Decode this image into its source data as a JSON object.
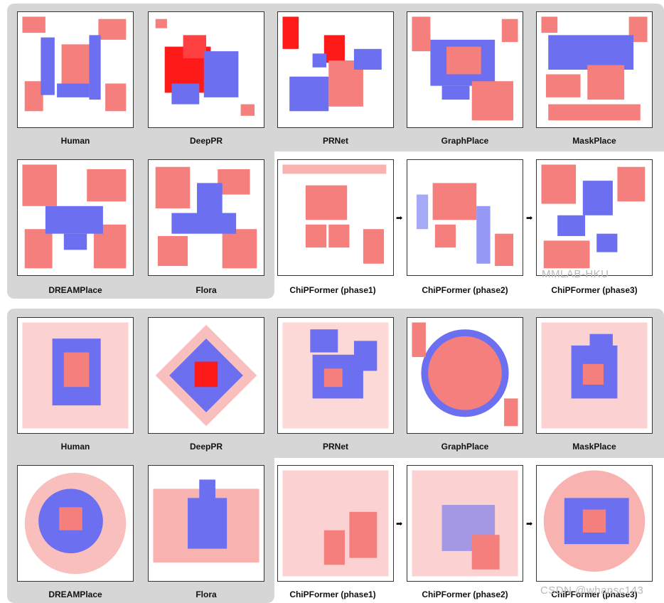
{
  "figure": {
    "top_set": {
      "labels": [
        "Human",
        "DeepPR",
        "PRNet",
        "GraphPlace",
        "MaskPlace",
        "DREAMPlace",
        "Flora",
        "ChiPFormer (phase1)",
        "ChiPFormer (phase2)",
        "ChiPFormer (phase3)"
      ]
    },
    "bottom_set": {
      "labels": [
        "Human",
        "DeepPR",
        "PRNet",
        "GraphPlace",
        "MaskPlace",
        "DREAMPlace",
        "Flora",
        "ChiPFormer (phase1)",
        "ChiPFormer (phase2)",
        "ChiPFormer (phase3)"
      ]
    },
    "arrow_glyph": "➡",
    "watermark_top": "MMLAB-HKU",
    "watermark_bottom": "CSDN @whansc143",
    "colors": {
      "macro": "#f47f7c",
      "cell_cluster": "#6b6ff0",
      "dense": "#ff1a1a",
      "panel_bg": "#d6d6d6"
    }
  }
}
